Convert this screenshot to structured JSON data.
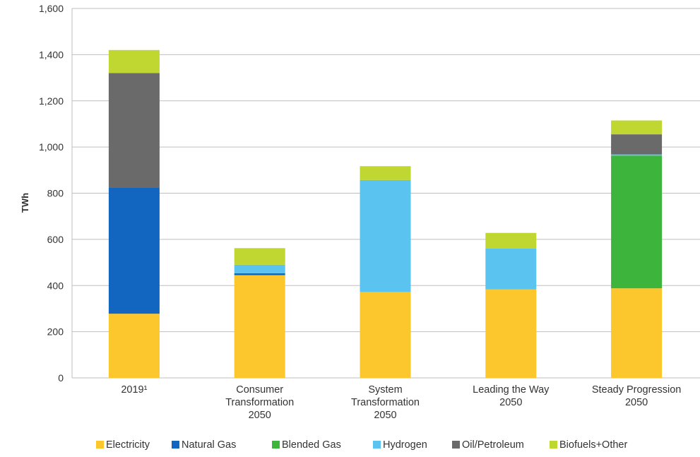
{
  "chart_data": {
    "type": "bar",
    "stacked": true,
    "ylabel": "TWh",
    "ylim": [
      0,
      1600
    ],
    "yticks": [
      0,
      200,
      400,
      600,
      800,
      1000,
      1200,
      1400,
      1600
    ],
    "ytick_labels": [
      "0",
      "200",
      "400",
      "600",
      "800",
      "1,000",
      "1,200",
      "1,400",
      "1,600"
    ],
    "grid": true,
    "legend_position": "bottom",
    "categories": [
      [
        "2019¹"
      ],
      [
        "Consumer",
        "Transformation",
        "2050"
      ],
      [
        "System",
        "Transformation",
        "2050"
      ],
      [
        "Leading the Way",
        "2050"
      ],
      [
        "Steady Progression",
        "2050"
      ]
    ],
    "series": [
      {
        "name": "Electricity",
        "color": "#FCC72C",
        "values": [
          278,
          445,
          372,
          383,
          388
        ]
      },
      {
        "name": "Natural Gas",
        "color": "#1366C0",
        "values": [
          545,
          8,
          0,
          0,
          0
        ]
      },
      {
        "name": "Blended Gas",
        "color": "#3DB53C",
        "values": [
          0,
          0,
          0,
          0,
          575
        ]
      },
      {
        "name": "Hydrogen",
        "color": "#5BC3F0",
        "values": [
          0,
          37,
          485,
          177,
          5
        ]
      },
      {
        "name": "Oil/Petroleum",
        "color": "#6A6A6A",
        "values": [
          497,
          0,
          0,
          0,
          87
        ]
      },
      {
        "name": "Biofuels+Other",
        "color": "#BFD730",
        "values": [
          100,
          72,
          60,
          68,
          60
        ]
      }
    ]
  }
}
